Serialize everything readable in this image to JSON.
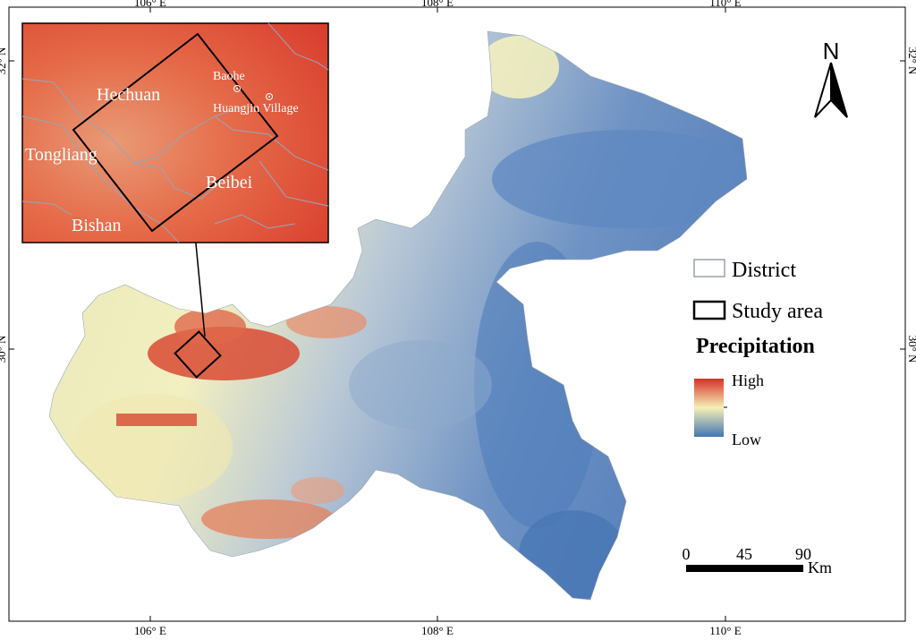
{
  "map": {
    "lon_ticks": [
      "106° E",
      "108° E",
      "110° E"
    ],
    "lat_ticks": [
      "32° N",
      "30° N"
    ]
  },
  "inset": {
    "places": [
      "Hechuan",
      "Tongliang",
      "Beibei",
      "Bishan"
    ],
    "points": [
      "Baohe",
      "Huangjin Village"
    ]
  },
  "north_arrow": {
    "label": "N"
  },
  "legend": {
    "district_label": "District",
    "study_area_label": "Study area",
    "title": "Precipitation",
    "high_label": "High",
    "low_label": "Low",
    "colors": {
      "high": "#d73027",
      "mid": "#f5f0b6",
      "low": "#4575b4"
    }
  },
  "scale_bar": {
    "ticks": [
      "0",
      "45",
      "90"
    ],
    "unit": "Km"
  }
}
